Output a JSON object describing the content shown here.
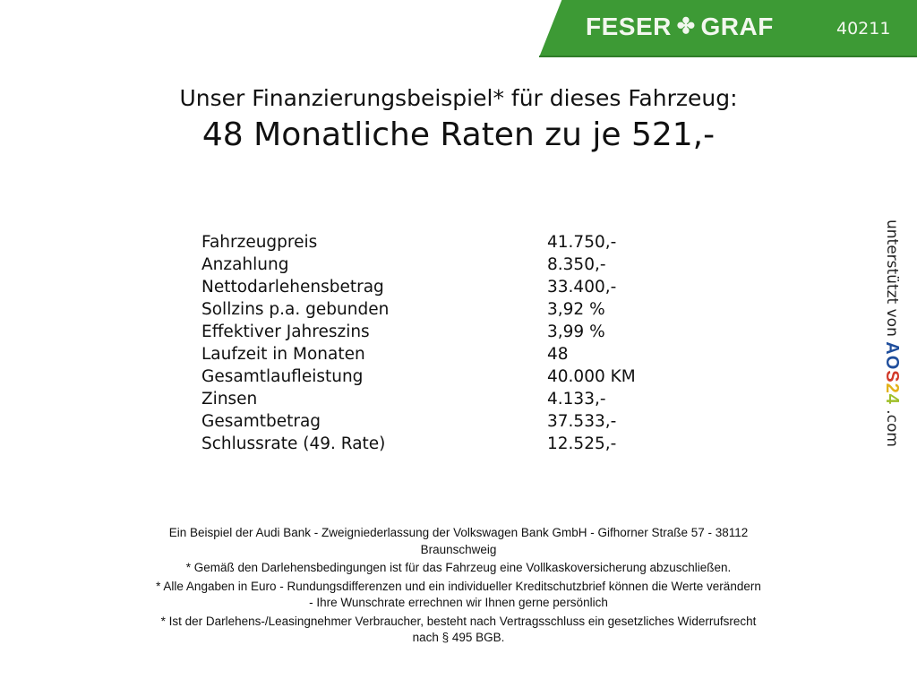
{
  "header": {
    "brand": "FESER",
    "brand2": "GRAF",
    "brand_icon": "clover-icon",
    "code": "40211",
    "color": "#3d9a35"
  },
  "subtitle": "Unser Finanzierungsbeispiel* für dieses Fahrzeug:",
  "title": "48 Monatliche Raten zu je 521,-",
  "rows": [
    {
      "label": "Fahrzeugpreis",
      "value": "41.750,-"
    },
    {
      "label": "Anzahlung",
      "value": "8.350,-"
    },
    {
      "label": "Nettodarlehensbetrag",
      "value": "33.400,-"
    },
    {
      "label": "Sollzins p.a. gebunden",
      "value": "3,92 %"
    },
    {
      "label": "Effektiver Jahreszins",
      "value": "3,99 %"
    },
    {
      "label": "Laufzeit in Monaten",
      "value": "48"
    },
    {
      "label": "Gesamtlaufleistung",
      "value": "40.000 KM"
    },
    {
      "label": "Zinsen",
      "value": "4.133,-"
    },
    {
      "label": "Gesamtbetrag",
      "value": "37.533,-"
    },
    {
      "label": "Schlussrate (49. Rate)",
      "value": "12.525,-"
    }
  ],
  "side": {
    "text": "unterstützt von",
    "logo_letters": [
      "A",
      "O",
      "S",
      "2",
      "4"
    ],
    "logo_colors": [
      "#1f4e9c",
      "#1f4e9c",
      "#d23a2a",
      "#e3b21a",
      "#9fbf2a"
    ],
    "suffix": ".com"
  },
  "footer": [
    "Ein Beispiel der Audi Bank - Zweigniederlassung der Volkswagen Bank GmbH - Gifhorner Straße 57 - 38112",
    "Braunschweig",
    "* Gemäß den Darlehensbedingungen ist für das Fahrzeug eine Vollkaskoversicherung abzuschließen.",
    "* Alle Angaben in Euro - Rundungsdifferenzen und ein individueller Kreditschutzbrief können die Werte verändern",
    "- Ihre Wunschrate errechnen wir Ihnen gerne persönlich",
    "* Ist der Darlehens-/Leasingnehmer Verbraucher, besteht nach Vertragsschluss ein gesetzliches Widerrufsrecht",
    "nach § 495 BGB."
  ]
}
